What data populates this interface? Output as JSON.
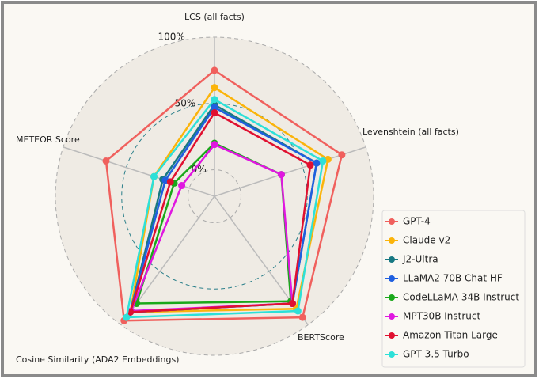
{
  "chart_data": {
    "type": "radar",
    "categories": [
      "LCS (all facts)",
      "Levenshtein (all facts)",
      "BERTScore",
      "Cosine Similarity (ADA2 Embeddings)",
      "METEOR Score"
    ],
    "ylim": [
      -20,
      100
    ],
    "yticks": [
      {
        "value": 0,
        "label": "0%"
      },
      {
        "value": 50,
        "label": "50%"
      },
      {
        "value": 100,
        "label": "100%"
      }
    ],
    "legend": "lower right",
    "series": [
      {
        "name": "GPT-4",
        "color": "#f0605d",
        "values": [
          75,
          81,
          93,
          96,
          66
        ]
      },
      {
        "name": "Claude v2",
        "color": "#fbb40b",
        "values": [
          62,
          70,
          85,
          88,
          28
        ]
      },
      {
        "name": "J2-Ultra",
        "color": "#177882",
        "values": [
          49,
          61,
          80,
          88,
          21
        ]
      },
      {
        "name": "LLaMA2 70B Chat HF",
        "color": "#1f5fe0",
        "values": [
          47,
          61,
          80,
          88,
          19
        ]
      },
      {
        "name": "CodeLLaMA 34B Instruct",
        "color": "#1aa81a",
        "values": [
          20,
          33,
          78,
          80,
          12
        ]
      },
      {
        "name": "MPT30B Instruct",
        "color": "#e017e0",
        "values": [
          19,
          33,
          80,
          87,
          6
        ]
      },
      {
        "name": "Amazon Titan Large",
        "color": "#e01030",
        "values": [
          43,
          56,
          80,
          88,
          15
        ]
      },
      {
        "name": "GPT 3.5 Turbo",
        "color": "#2de0d8",
        "values": [
          53,
          66,
          87,
          93,
          28
        ]
      }
    ]
  }
}
